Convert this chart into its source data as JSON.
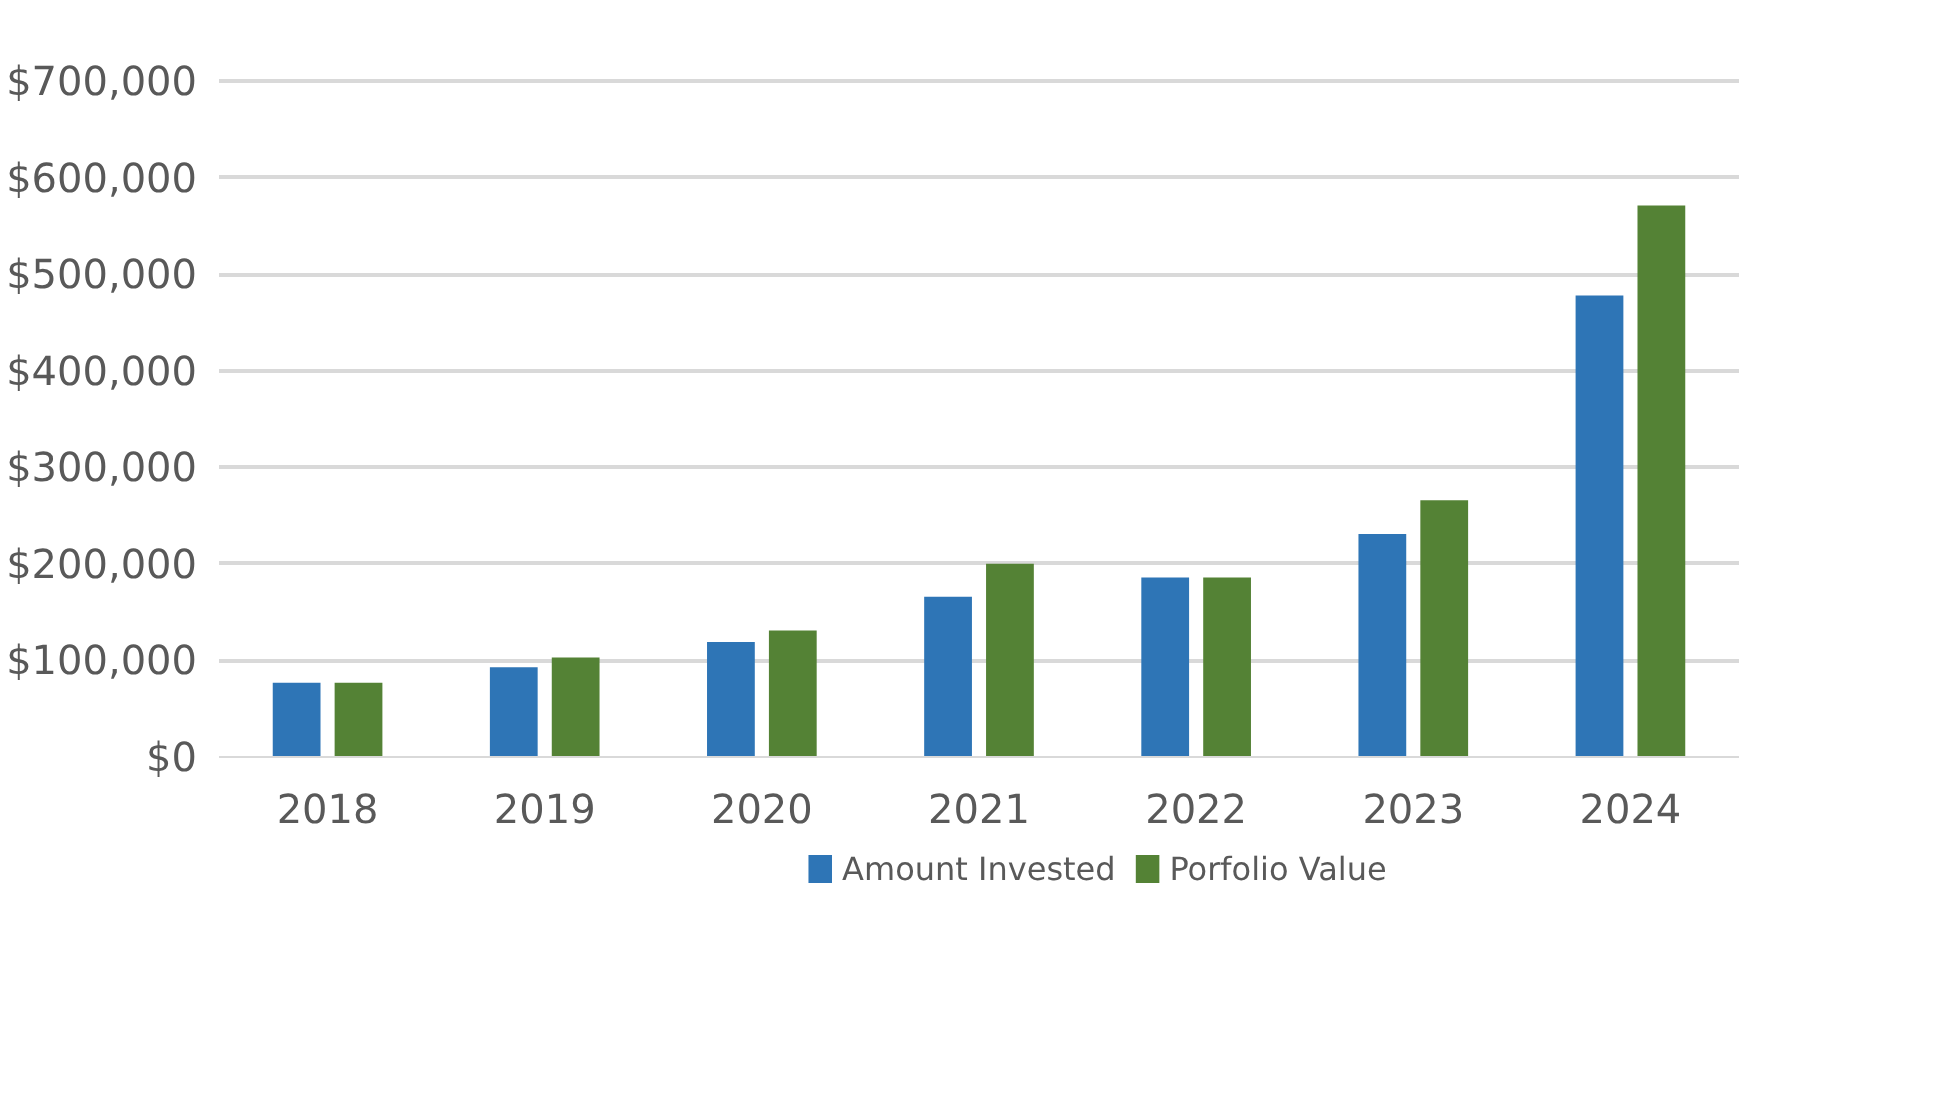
{
  "chart_data": {
    "type": "bar",
    "categories": [
      "2018",
      "2019",
      "2020",
      "2021",
      "2022",
      "2023",
      "2024"
    ],
    "series": [
      {
        "name": "Amount Invested",
        "color": "#2e75b6",
        "values": [
          77000,
          93000,
          119000,
          166000,
          186000,
          231000,
          478000
        ]
      },
      {
        "name": "Porfolio Value",
        "color": "#548235",
        "values": [
          77000,
          103000,
          131000,
          200000,
          186000,
          266000,
          571000
        ]
      }
    ],
    "ylim": [
      0,
      700000
    ],
    "yticks": [
      {
        "value": 0,
        "label": "$0"
      },
      {
        "value": 100000,
        "label": "$100,000"
      },
      {
        "value": 200000,
        "label": "$200,000"
      },
      {
        "value": 300000,
        "label": "$300,000"
      },
      {
        "value": 400000,
        "label": "$400,000"
      },
      {
        "value": 500000,
        "label": "$500,000"
      },
      {
        "value": 600000,
        "label": "$600,000"
      },
      {
        "value": 700000,
        "label": "$700,000"
      }
    ],
    "grid": "y",
    "legend": "bottom"
  }
}
